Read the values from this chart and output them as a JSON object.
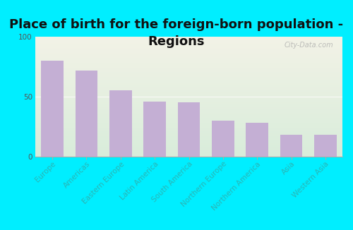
{
  "title": "Place of birth for the foreign-born population -\nRegions",
  "categories": [
    "Europe",
    "Americas",
    "Eastern Europe",
    "Latin America",
    "South America",
    "Northern Europe",
    "Northern America",
    "Asia",
    "Western Asia"
  ],
  "values": [
    80,
    72,
    55,
    46,
    45,
    30,
    28,
    18,
    18
  ],
  "bar_color": "#c4afd4",
  "background_outer": "#00eeff",
  "background_inner_top": "#f2f2e6",
  "background_inner_bottom": "#d8ecda",
  "ylim": [
    0,
    100
  ],
  "yticks": [
    0,
    50,
    100
  ],
  "title_fontsize": 13,
  "tick_fontsize": 7.5,
  "xlabel_color": "#2ab5b5",
  "ylabel_color": "#555555",
  "watermark": "City-Data.com",
  "figsize": [
    5.0,
    3.26
  ],
  "dpi": 100
}
